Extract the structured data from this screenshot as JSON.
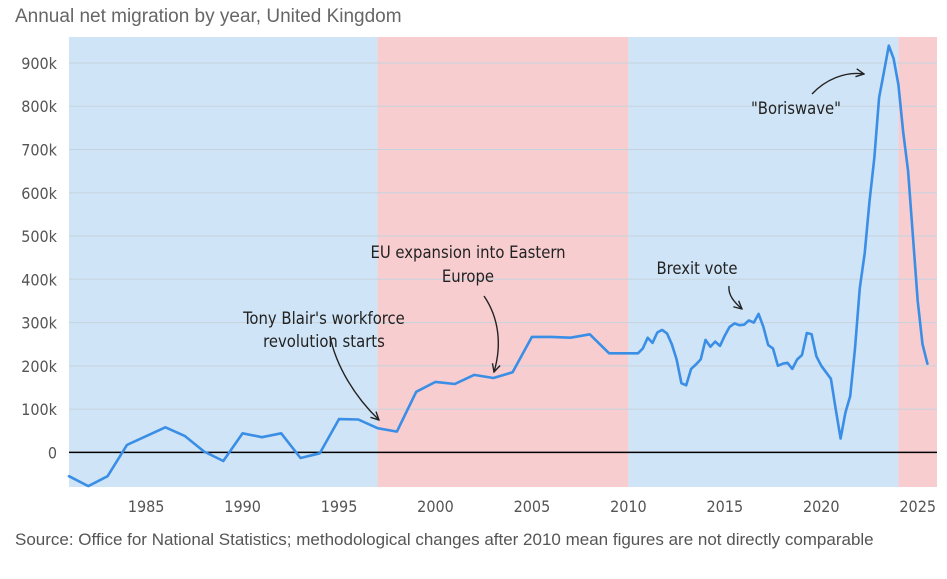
{
  "chart_data": {
    "type": "line",
    "title": "Annual net migration by year, United Kingdom",
    "source": "Source: Office for National Statistics; methodological changes after 2010 mean figures are not directly comparable",
    "xlabel": "",
    "ylabel": "",
    "xlim": [
      1981,
      2026
    ],
    "ylim": [
      -80000,
      960000
    ],
    "y_ticks": [
      0,
      100000,
      200000,
      300000,
      400000,
      500000,
      600000,
      700000,
      800000,
      900000
    ],
    "y_tick_labels": [
      "0",
      "100k",
      "200k",
      "300k",
      "400k",
      "500k",
      "600k",
      "700k",
      "800k",
      "900k"
    ],
    "x_ticks": [
      1985,
      1990,
      1995,
      2000,
      2005,
      2010,
      2015,
      2020,
      2025
    ],
    "x_tick_labels": [
      "1985",
      "1990",
      "1995",
      "2000",
      "2005",
      "2010",
      "2015",
      "2020",
      "2025"
    ],
    "grid": true,
    "colors": {
      "line": "#3a8ee6",
      "band_blue": "#cfe4f6",
      "band_red": "#f7cdd0",
      "grid": "#c6d3de",
      "zero": "#000000"
    },
    "bands": [
      {
        "start": 1981,
        "end": 1997,
        "color": "blue"
      },
      {
        "start": 1997,
        "end": 2010,
        "color": "red"
      },
      {
        "start": 2010,
        "end": 2024,
        "color": "blue"
      },
      {
        "start": 2024,
        "end": 2026,
        "color": "red"
      }
    ],
    "series": [
      {
        "name": "Net migration",
        "x": [
          1981,
          1982,
          1983,
          1984,
          1986,
          1987,
          1988,
          1989,
          1990,
          1991,
          1992,
          1993,
          1994,
          1995,
          1996,
          1997,
          1998,
          1999,
          2000,
          2001,
          2002,
          2003,
          2004,
          2005,
          2006,
          2007,
          2008,
          2009,
          2010,
          2010.5,
          2010.75,
          2011,
          2011.25,
          2011.5,
          2011.75,
          2012,
          2012.25,
          2012.5,
          2012.75,
          2013,
          2013.25,
          2013.5,
          2013.75,
          2014,
          2014.25,
          2014.5,
          2014.75,
          2015,
          2015.25,
          2015.5,
          2015.75,
          2016,
          2016.25,
          2016.5,
          2016.75,
          2017,
          2017.25,
          2017.5,
          2017.75,
          2018,
          2018.25,
          2018.5,
          2018.75,
          2019,
          2019.25,
          2019.5,
          2019.75,
          2020,
          2020.25,
          2020.5,
          2020.75,
          2021,
          2021.25,
          2021.5,
          2021.75,
          2022,
          2022.25,
          2022.5,
          2022.75,
          2023,
          2023.25,
          2023.5,
          2023.75,
          2024,
          2024.25,
          2024.5,
          2024.75,
          2025,
          2025.25,
          2025.5
        ],
        "y": [
          -55000,
          -78000,
          -55000,
          17000,
          58000,
          38000,
          2000,
          -20000,
          44000,
          35000,
          44000,
          -13000,
          -2000,
          77000,
          76000,
          56000,
          48000,
          140000,
          163000,
          158000,
          179000,
          172000,
          185000,
          267000,
          267000,
          265000,
          273000,
          229000,
          229000,
          229000,
          240000,
          265000,
          253000,
          277000,
          283000,
          275000,
          250000,
          215000,
          160000,
          155000,
          193000,
          203000,
          215000,
          260000,
          244000,
          256000,
          246000,
          270000,
          290000,
          298000,
          294000,
          295000,
          305000,
          300000,
          320000,
          290000,
          248000,
          240000,
          200000,
          205000,
          207000,
          193000,
          215000,
          225000,
          276000,
          273000,
          222000,
          200000,
          185000,
          170000,
          100000,
          32000,
          92000,
          130000,
          240000,
          380000,
          460000,
          580000,
          680000,
          820000,
          880000,
          940000,
          910000,
          850000,
          740000,
          650000,
          500000,
          350000,
          250000,
          205000
        ]
      }
    ],
    "annotations": [
      {
        "id": "blair",
        "lines": [
          "Tony Blair's workforce",
          "revolution starts"
        ],
        "target_x": 1997,
        "target_y": 56000
      },
      {
        "id": "eu",
        "lines": [
          "EU expansion into Eastern",
          "Europe"
        ],
        "target_x": 2003,
        "target_y": 172000
      },
      {
        "id": "brexit",
        "lines": [
          "Brexit vote"
        ],
        "target_x": 2016,
        "target_y": 330000
      },
      {
        "id": "boris",
        "lines": [
          "\"Boriswave\""
        ],
        "target_x": 2023,
        "target_y": 900000
      }
    ]
  }
}
